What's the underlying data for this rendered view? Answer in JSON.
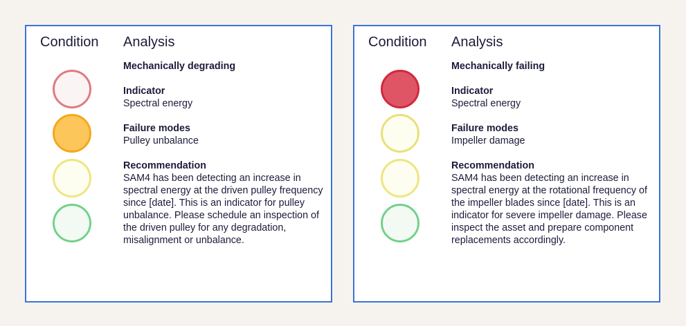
{
  "cards": [
    {
      "condition_header": "Condition",
      "analysis_header": "Analysis",
      "title": "Mechanically degrading",
      "indicator_label": "Indicator",
      "indicator_value": "Spectral energy",
      "failure_modes_label": "Failure modes",
      "failure_modes_value": "Pulley unbalance",
      "recommendation_label": "Recommendation",
      "recommendation_text": "SAM4 has been detecting an increase in spectral energy at the driven pulley frequency since [date]. This is an indicator for pulley unbalance. Please schedule an inspection of the driven pulley for any degradation, misalignment or unbalance.",
      "lights": [
        {
          "state": "inactive",
          "fill": "#faf4f4",
          "border": "#e07a80"
        },
        {
          "state": "active",
          "fill": "#fcc65a",
          "border": "#f3a81e"
        },
        {
          "state": "inactive",
          "fill": "#fdfdf0",
          "border": "#ede680"
        },
        {
          "state": "inactive",
          "fill": "#f3faf3",
          "border": "#74d08a"
        }
      ]
    },
    {
      "condition_header": "Condition",
      "analysis_header": "Analysis",
      "title": "Mechanically failing",
      "indicator_label": "Indicator",
      "indicator_value": "Spectral energy",
      "failure_modes_label": "Failure modes",
      "failure_modes_value": "Impeller damage",
      "recommendation_label": "Recommendation",
      "recommendation_text": "SAM4 has been detecting an increase in spectral energy at the rotational frequency of the impeller blades since [date]. This is an indicator for severe impeller damage. Please inspect the asset and prepare component replacements accordingly.",
      "lights": [
        {
          "state": "active",
          "fill": "#e05566",
          "border": "#cf2a3c"
        },
        {
          "state": "inactive",
          "fill": "#fdfdf0",
          "border": "#ecdf7a"
        },
        {
          "state": "inactive",
          "fill": "#fdfdf0",
          "border": "#ede680"
        },
        {
          "state": "inactive",
          "fill": "#f3faf3",
          "border": "#74d08a"
        }
      ]
    }
  ]
}
